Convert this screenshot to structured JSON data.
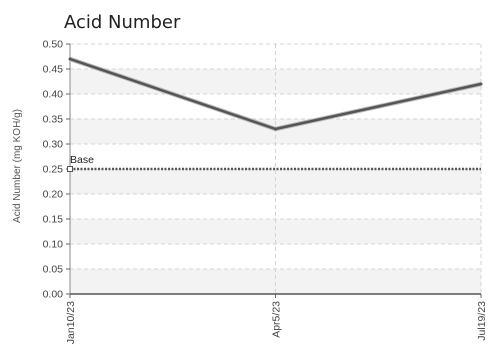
{
  "chart_data": {
    "type": "line",
    "title": "Acid Number",
    "xlabel": "",
    "ylabel": "Acid Number (mg KOH/g)",
    "ylim": [
      0,
      0.5
    ],
    "yticks": [
      "0.00",
      "0.05",
      "0.10",
      "0.15",
      "0.20",
      "0.25",
      "0.30",
      "0.35",
      "0.40",
      "0.45",
      "0.50"
    ],
    "categories": [
      "Jan10/23",
      "Apr5/23",
      "Jul19/23"
    ],
    "series": [
      {
        "values": [
          0.47,
          0.33,
          0.42
        ],
        "color": "#555555"
      }
    ],
    "baseline": {
      "label": "Base",
      "value": 0.25,
      "color": "#555555"
    },
    "grid": true,
    "band_colors": [
      "#f3f3f3",
      "#ffffff"
    ]
  }
}
